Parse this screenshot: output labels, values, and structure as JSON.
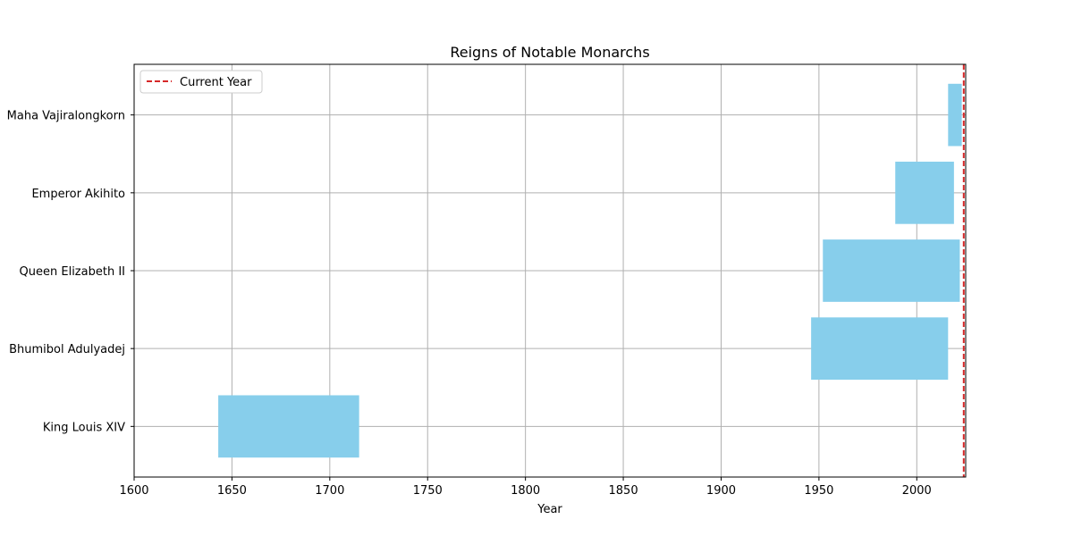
{
  "chart_data": {
    "type": "bar",
    "orientation": "horizontal",
    "title": "Reigns of Notable Monarchs",
    "xlabel": "Year",
    "ylabel": "",
    "xlim": [
      1600,
      2025
    ],
    "xticks": [
      1600,
      1650,
      1700,
      1750,
      1800,
      1850,
      1900,
      1950,
      2000
    ],
    "grid": true,
    "bar_color": "#87ceeb",
    "categories": [
      "King Louis XIV",
      "Bhumibol Adulyadej",
      "Queen Elizabeth II",
      "Emperor Akihito",
      "Maha Vajiralongkorn"
    ],
    "series": [
      {
        "values": [
          {
            "start": 1643,
            "end": 1715
          },
          {
            "start": 1946,
            "end": 2016
          },
          {
            "start": 1952,
            "end": 2022
          },
          {
            "start": 1989,
            "end": 2019
          },
          {
            "start": 2016,
            "end": 2023
          }
        ]
      }
    ],
    "reference_line": {
      "label": "Current Year",
      "value": 2024,
      "color": "#d62728",
      "style": "dashed"
    },
    "legend": {
      "placement": "top-left",
      "entries": [
        "Current Year"
      ]
    }
  }
}
